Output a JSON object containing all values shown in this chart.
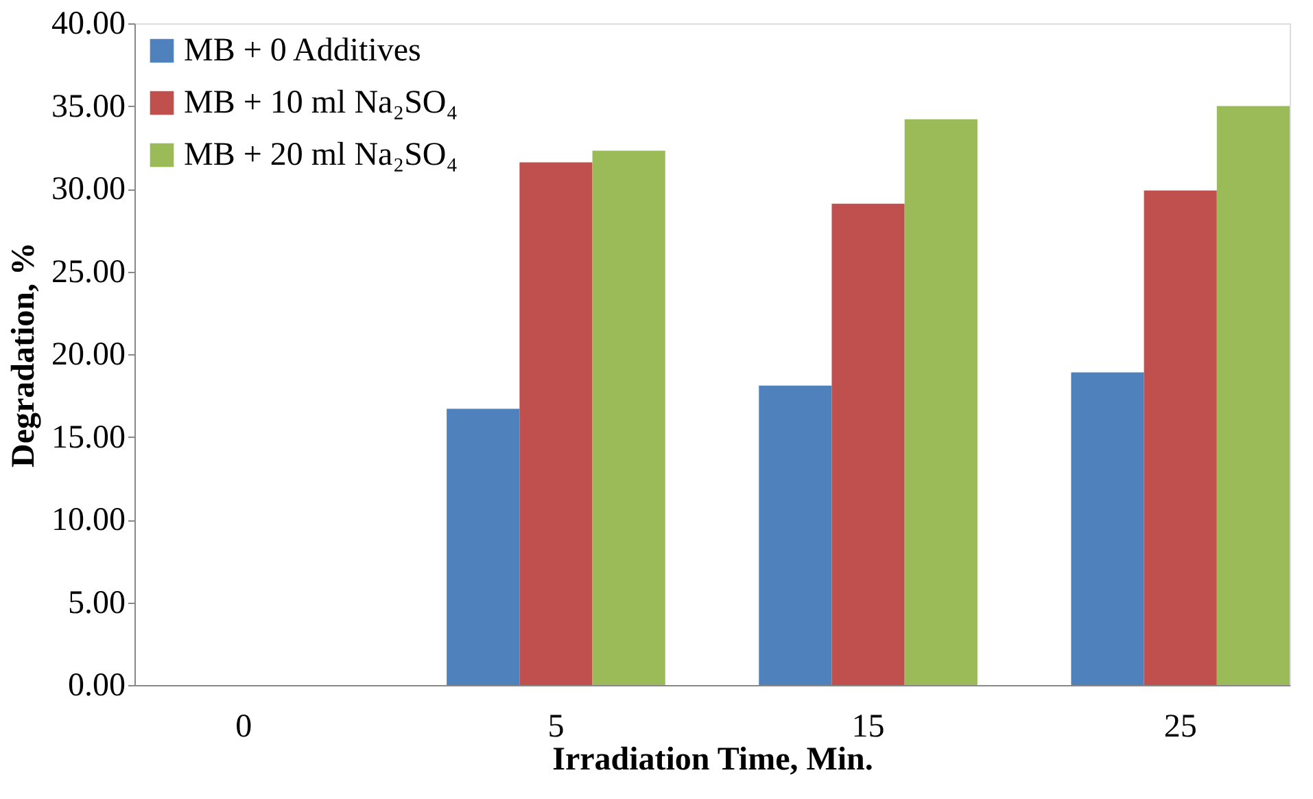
{
  "chart_data": {
    "type": "bar",
    "xlabel": "Irradiation Time, Min.",
    "ylabel": "Degradation, %",
    "categories": [
      "0",
      "5",
      "15",
      "25"
    ],
    "series": [
      {
        "name": "MB + 0 Additives",
        "color": "#4f81bd",
        "values": [
          0,
          16.7,
          18.1,
          18.9
        ]
      },
      {
        "name": "MB + 10 ml Na₂SO₄",
        "color": "#c0504d",
        "values": [
          0,
          31.6,
          29.1,
          29.9
        ]
      },
      {
        "name": "MB + 20 ml Na₂SO₄",
        "color": "#9bbb59",
        "values": [
          0,
          32.3,
          34.2,
          35.0
        ]
      }
    ],
    "ylim": [
      0,
      40
    ],
    "yticks": [
      {
        "value": 0,
        "label": "0.00"
      },
      {
        "value": 5,
        "label": "5.00"
      },
      {
        "value": 10,
        "label": "10.00"
      },
      {
        "value": 15,
        "label": "15.00"
      },
      {
        "value": 20,
        "label": "20.00"
      },
      {
        "value": 25,
        "label": "25.00"
      },
      {
        "value": 30,
        "label": "30.00"
      },
      {
        "value": 35,
        "label": "35.00"
      },
      {
        "value": 40,
        "label": "40.00"
      }
    ],
    "grid": false,
    "legend": "top left"
  }
}
